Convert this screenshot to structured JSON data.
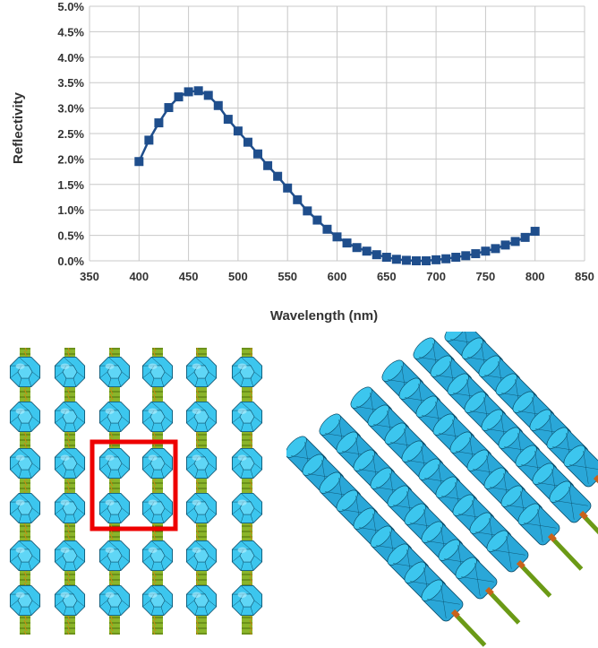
{
  "chart_data": {
    "type": "line",
    "title": "",
    "xlabel": "Wavelength (nm)",
    "ylabel": "Reflectivity",
    "xlim": [
      350,
      850
    ],
    "ylim": [
      0,
      5
    ],
    "x_ticks": [
      "350",
      "400",
      "450",
      "500",
      "550",
      "600",
      "650",
      "700",
      "750",
      "800",
      "850"
    ],
    "y_ticks": [
      "0.0%",
      "0.5%",
      "1.0%",
      "1.5%",
      "2.0%",
      "2.5%",
      "3.0%",
      "3.5%",
      "4.0%",
      "4.5%",
      "5.0%"
    ],
    "grid": true,
    "legend": "none",
    "marker": "square",
    "series": [
      {
        "color": "#1f4e8c",
        "x": [
          400,
          410,
          420,
          430,
          440,
          450,
          460,
          470,
          480,
          490,
          500,
          510,
          520,
          530,
          540,
          550,
          560,
          570,
          580,
          590,
          600,
          610,
          620,
          630,
          640,
          650,
          660,
          670,
          680,
          690,
          700,
          710,
          720,
          730,
          740,
          750,
          760,
          770,
          780,
          790,
          800
        ],
        "y": [
          1.95,
          2.37,
          2.71,
          3.01,
          3.22,
          3.32,
          3.34,
          3.25,
          3.05,
          2.78,
          2.55,
          2.33,
          2.1,
          1.87,
          1.66,
          1.43,
          1.2,
          0.98,
          0.8,
          0.62,
          0.47,
          0.35,
          0.26,
          0.19,
          0.12,
          0.07,
          0.03,
          0.01,
          0.0,
          0.0,
          0.02,
          0.04,
          0.07,
          0.1,
          0.14,
          0.19,
          0.24,
          0.31,
          0.38,
          0.46,
          0.58
        ]
      }
    ]
  },
  "colors": {
    "grid": "#c8c8c8",
    "sphere": "#3cc6ee",
    "sphere_edge": "#0a4a66",
    "rod": "#6b9a16",
    "highlight_box": "#ee0000"
  },
  "figures": [
    {
      "name": "lattice-front-view",
      "rows": 6,
      "columns": 6
    },
    {
      "name": "lattice-angled-view",
      "rows": 5,
      "columns": 6
    }
  ]
}
